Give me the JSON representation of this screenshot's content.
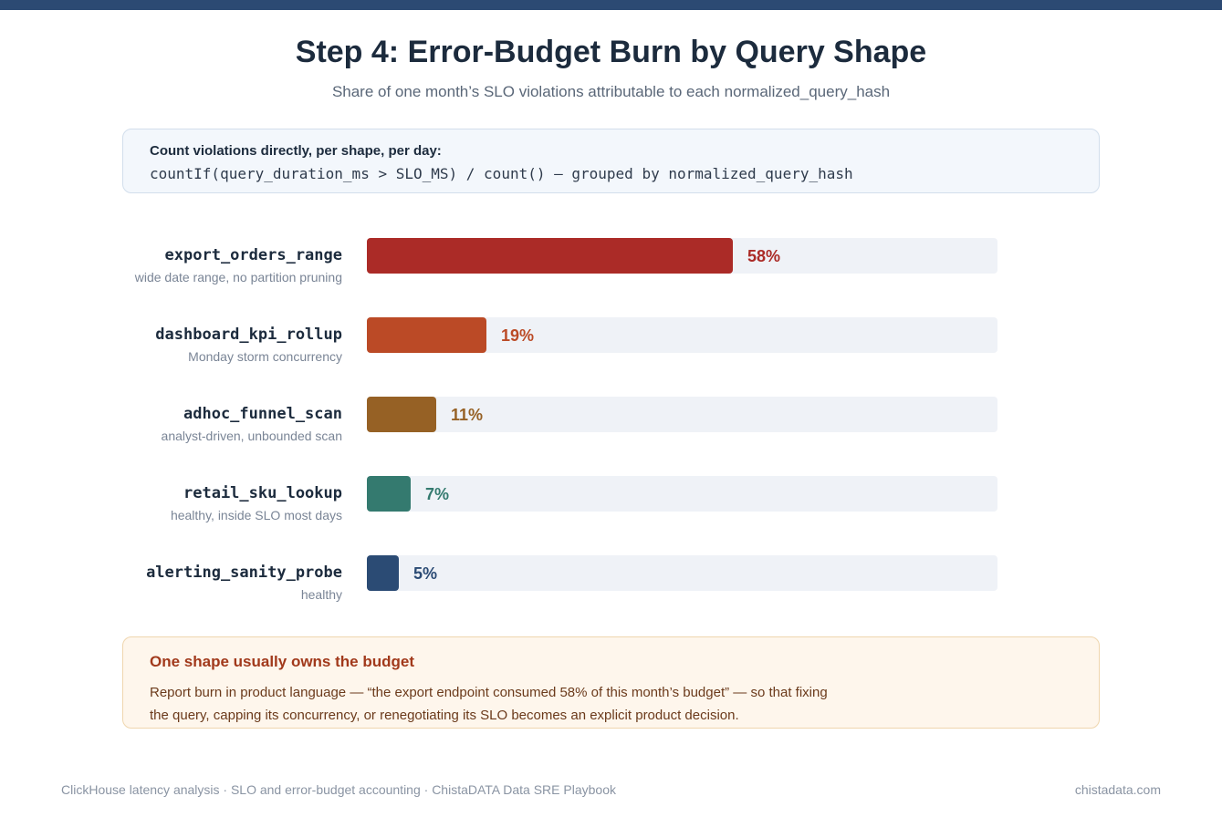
{
  "header": {
    "title": "Step 4: Error-Budget Burn by Query Shape",
    "subtitle": "Share of one month’s SLO violations attributable to each normalized_query_hash"
  },
  "formula": {
    "label": "Count violations directly, per shape, per day:",
    "code": "countIf(query_duration_ms > SLO_MS) / count() — grouped by normalized_query_hash"
  },
  "chart_data": {
    "type": "bar",
    "orientation": "horizontal",
    "value_unit": "%",
    "xlim": [
      0,
      100
    ],
    "grid": false,
    "categories": [
      "export_orders_range",
      "dashboard_kpi_rollup",
      "adhoc_funnel_scan",
      "retail_sku_lookup",
      "alerting_sanity_probe"
    ],
    "notes": [
      "wide date range, no partition pruning",
      "Monday storm concurrency",
      "analyst-driven, unbounded scan",
      "healthy, inside SLO most days",
      "healthy"
    ],
    "values": [
      58,
      19,
      11,
      7,
      5
    ],
    "value_labels": [
      "58%",
      "19%",
      "11%",
      "7%",
      "5%"
    ],
    "colors": [
      "#ab2b27",
      "#bb4a26",
      "#966125",
      "#347a6f",
      "#2b4b74"
    ]
  },
  "callout": {
    "title": "One shape usually owns the budget",
    "body": "Report burn in product language — “the export endpoint consumed 58% of this month’s budget” — so that fixing the query, capping its concurrency, or renegotiating its SLO becomes an explicit product decision."
  },
  "footer": {
    "left": "ClickHouse latency analysis · SLO and error-budget accounting · ChistaDATA Data SRE Playbook",
    "right": "chistadata.com"
  },
  "colors": {
    "top_stripe": "#2c4a73",
    "track": "#eff2f7"
  }
}
